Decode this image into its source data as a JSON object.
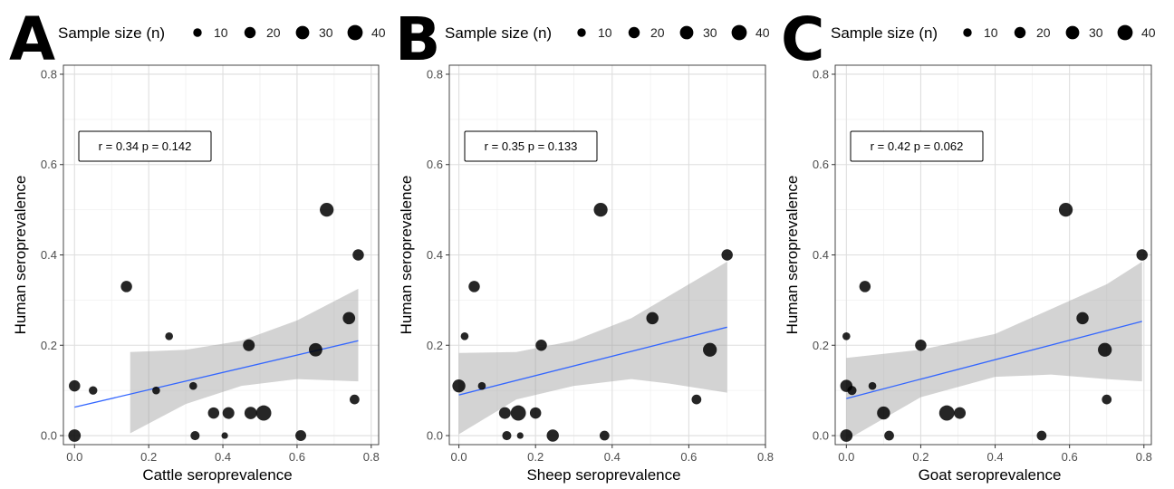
{
  "legend": {
    "title": "Sample size (n)",
    "sizes": [
      10,
      20,
      30,
      40
    ],
    "labels": [
      "10",
      "20",
      "30",
      "40"
    ]
  },
  "chart_data": [
    {
      "panel": "A",
      "type": "scatter",
      "xlabel": "Cattle seroprevalence",
      "ylabel": "Human seroprevalence",
      "xlim": [
        -0.03,
        0.82
      ],
      "ylim": [
        -0.02,
        0.82
      ],
      "xticks": [
        "0.0",
        "0.2",
        "0.4",
        "0.6",
        "0.8"
      ],
      "yticks": [
        "0.0",
        "0.2",
        "0.4",
        "0.6",
        "0.8"
      ],
      "grid": true,
      "annotation": "r = 0.34  p = 0.142",
      "fit": {
        "x0": 0.0,
        "y0": 0.063,
        "x1": 0.765,
        "y1": 0.21
      },
      "ci_band": [
        {
          "x": 0.15,
          "lo": 0.005,
          "hi": 0.185
        },
        {
          "x": 0.3,
          "lo": 0.07,
          "hi": 0.19
        },
        {
          "x": 0.45,
          "lo": 0.11,
          "hi": 0.21
        },
        {
          "x": 0.6,
          "lo": 0.125,
          "hi": 0.255
        },
        {
          "x": 0.765,
          "lo": 0.12,
          "hi": 0.325
        }
      ],
      "points": [
        {
          "x": 0.0,
          "y": 0.11,
          "n": 20
        },
        {
          "x": 0.0,
          "y": 0.0,
          "n": 25
        },
        {
          "x": 0.05,
          "y": 0.1,
          "n": 10
        },
        {
          "x": 0.14,
          "y": 0.33,
          "n": 20
        },
        {
          "x": 0.22,
          "y": 0.1,
          "n": 8
        },
        {
          "x": 0.255,
          "y": 0.22,
          "n": 8
        },
        {
          "x": 0.32,
          "y": 0.11,
          "n": 8
        },
        {
          "x": 0.325,
          "y": 0.0,
          "n": 12
        },
        {
          "x": 0.375,
          "y": 0.05,
          "n": 20
        },
        {
          "x": 0.405,
          "y": 0.0,
          "n": 5
        },
        {
          "x": 0.415,
          "y": 0.05,
          "n": 22
        },
        {
          "x": 0.47,
          "y": 0.2,
          "n": 22
        },
        {
          "x": 0.475,
          "y": 0.05,
          "n": 25
        },
        {
          "x": 0.51,
          "y": 0.05,
          "n": 40
        },
        {
          "x": 0.61,
          "y": 0.0,
          "n": 18
        },
        {
          "x": 0.65,
          "y": 0.19,
          "n": 30
        },
        {
          "x": 0.68,
          "y": 0.5,
          "n": 32
        },
        {
          "x": 0.74,
          "y": 0.26,
          "n": 25
        },
        {
          "x": 0.755,
          "y": 0.08,
          "n": 14
        },
        {
          "x": 0.765,
          "y": 0.4,
          "n": 20
        }
      ]
    },
    {
      "panel": "B",
      "type": "scatter",
      "xlabel": "Sheep seroprevalence",
      "ylabel": "Human seroprevalence",
      "xlim": [
        -0.025,
        0.8
      ],
      "ylim": [
        -0.02,
        0.82
      ],
      "xticks": [
        "0.0",
        "0.2",
        "0.4",
        "0.6",
        "0.8"
      ],
      "yticks": [
        "0.0",
        "0.2",
        "0.4",
        "0.6",
        "0.8"
      ],
      "grid": true,
      "annotation": "r = 0.35  p = 0.133",
      "fit": {
        "x0": 0.0,
        "y0": 0.09,
        "x1": 0.7,
        "y1": 0.24
      },
      "ci_band": [
        {
          "x": 0.0,
          "lo": 0.003,
          "hi": 0.183
        },
        {
          "x": 0.15,
          "lo": 0.08,
          "hi": 0.185
        },
        {
          "x": 0.3,
          "lo": 0.11,
          "hi": 0.21
        },
        {
          "x": 0.45,
          "lo": 0.125,
          "hi": 0.26
        },
        {
          "x": 0.55,
          "lo": 0.115,
          "hi": 0.31
        },
        {
          "x": 0.7,
          "lo": 0.095,
          "hi": 0.385
        }
      ],
      "points": [
        {
          "x": 0.0,
          "y": 0.11,
          "n": 28
        },
        {
          "x": 0.015,
          "y": 0.22,
          "n": 8
        },
        {
          "x": 0.04,
          "y": 0.33,
          "n": 20
        },
        {
          "x": 0.06,
          "y": 0.11,
          "n": 8
        },
        {
          "x": 0.12,
          "y": 0.05,
          "n": 22
        },
        {
          "x": 0.125,
          "y": 0.0,
          "n": 12
        },
        {
          "x": 0.155,
          "y": 0.05,
          "n": 40
        },
        {
          "x": 0.16,
          "y": 0.0,
          "n": 5
        },
        {
          "x": 0.2,
          "y": 0.05,
          "n": 20
        },
        {
          "x": 0.215,
          "y": 0.2,
          "n": 20
        },
        {
          "x": 0.245,
          "y": 0.0,
          "n": 24
        },
        {
          "x": 0.37,
          "y": 0.5,
          "n": 32
        },
        {
          "x": 0.38,
          "y": 0.0,
          "n": 14
        },
        {
          "x": 0.505,
          "y": 0.26,
          "n": 24
        },
        {
          "x": 0.62,
          "y": 0.08,
          "n": 14
        },
        {
          "x": 0.655,
          "y": 0.19,
          "n": 32
        },
        {
          "x": 0.7,
          "y": 0.4,
          "n": 20
        }
      ]
    },
    {
      "panel": "C",
      "type": "scatter",
      "xlabel": "Goat seroprevalence",
      "ylabel": "Human seroprevalence",
      "xlim": [
        -0.03,
        0.82
      ],
      "ylim": [
        -0.02,
        0.82
      ],
      "xticks": [
        "0.0",
        "0.2",
        "0.4",
        "0.6",
        "0.8"
      ],
      "yticks": [
        "0.0",
        "0.2",
        "0.4",
        "0.6",
        "0.8"
      ],
      "grid": true,
      "annotation": "r = 0.42  p = 0.062",
      "fit": {
        "x0": 0.0,
        "y0": 0.082,
        "x1": 0.795,
        "y1": 0.253
      },
      "ci_band": [
        {
          "x": 0.0,
          "lo": -0.01,
          "hi": 0.172
        },
        {
          "x": 0.2,
          "lo": 0.085,
          "hi": 0.19
        },
        {
          "x": 0.4,
          "lo": 0.13,
          "hi": 0.225
        },
        {
          "x": 0.55,
          "lo": 0.135,
          "hi": 0.28
        },
        {
          "x": 0.7,
          "lo": 0.125,
          "hi": 0.335
        },
        {
          "x": 0.795,
          "lo": 0.12,
          "hi": 0.385
        }
      ],
      "points": [
        {
          "x": 0.0,
          "y": 0.11,
          "n": 24
        },
        {
          "x": 0.0,
          "y": 0.0,
          "n": 25
        },
        {
          "x": 0.0,
          "y": 0.22,
          "n": 8
        },
        {
          "x": 0.015,
          "y": 0.1,
          "n": 12
        },
        {
          "x": 0.05,
          "y": 0.33,
          "n": 20
        },
        {
          "x": 0.07,
          "y": 0.11,
          "n": 8
        },
        {
          "x": 0.1,
          "y": 0.05,
          "n": 28
        },
        {
          "x": 0.115,
          "y": 0.0,
          "n": 14
        },
        {
          "x": 0.2,
          "y": 0.2,
          "n": 20
        },
        {
          "x": 0.27,
          "y": 0.05,
          "n": 40
        },
        {
          "x": 0.305,
          "y": 0.05,
          "n": 22
        },
        {
          "x": 0.525,
          "y": 0.0,
          "n": 14
        },
        {
          "x": 0.59,
          "y": 0.5,
          "n": 32
        },
        {
          "x": 0.635,
          "y": 0.26,
          "n": 24
        },
        {
          "x": 0.695,
          "y": 0.19,
          "n": 32
        },
        {
          "x": 0.7,
          "y": 0.08,
          "n": 14
        },
        {
          "x": 0.795,
          "y": 0.4,
          "n": 20
        }
      ]
    }
  ]
}
